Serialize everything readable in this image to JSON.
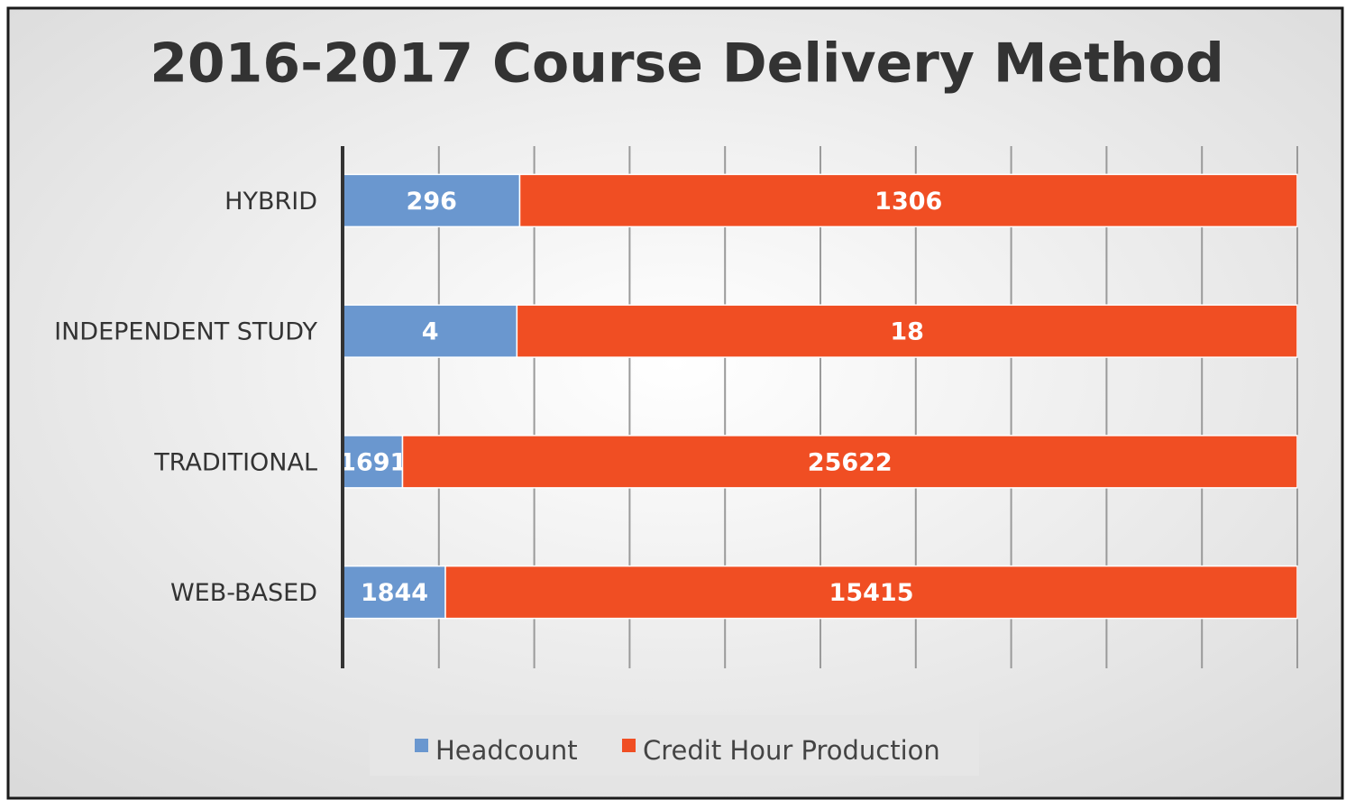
{
  "chart_data": {
    "type": "bar",
    "orientation": "horizontal",
    "stacking": "percent",
    "title": "2016-2017 Course Delivery Method",
    "categories": [
      "HYBRID",
      "INDEPENDENT STUDY",
      "TRADITIONAL",
      "WEB-BASED"
    ],
    "series": [
      {
        "name": "Headcount",
        "color": "#6a97cf",
        "values": [
          296,
          4,
          1691,
          1844
        ]
      },
      {
        "name": "Credit Hour Production",
        "color": "#f04e23",
        "values": [
          1306,
          18,
          25622,
          15415
        ]
      }
    ],
    "xlim": [
      0,
      100
    ],
    "xticks": [
      0,
      10,
      20,
      30,
      40,
      50,
      60,
      70,
      80,
      90,
      100
    ],
    "grid": true,
    "legend": "bottom"
  }
}
